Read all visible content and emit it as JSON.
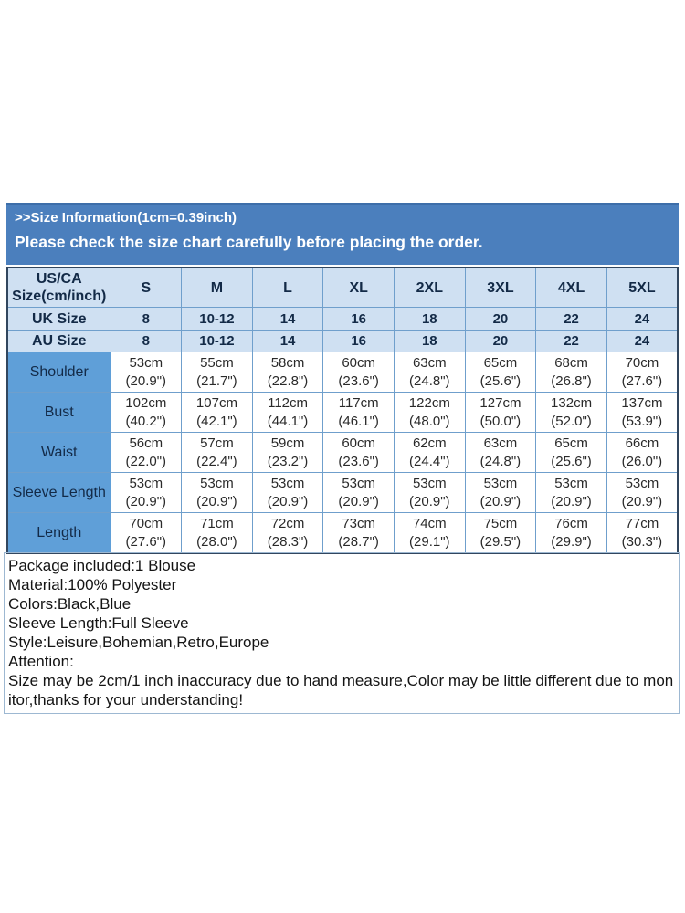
{
  "banner": {
    "title": ">>Size Information(1cm=0.39inch)",
    "subtitle": "Please check the size chart carefully before placing the order."
  },
  "size_chart": {
    "corner": {
      "line1": "US/CA",
      "line2": "Size(cm/inch)"
    },
    "size_headers": [
      "S",
      "M",
      "L",
      "XL",
      "2XL",
      "3XL",
      "4XL",
      "5XL"
    ],
    "uk_row": {
      "label": "UK Size",
      "values": [
        "8",
        "10-12",
        "14",
        "16",
        "18",
        "20",
        "22",
        "24"
      ]
    },
    "au_row": {
      "label": "AU Size",
      "values": [
        "8",
        "10-12",
        "14",
        "16",
        "18",
        "20",
        "22",
        "24"
      ]
    },
    "measurement_rows": [
      {
        "label": "Shoulder",
        "cells": [
          {
            "cm": "53cm",
            "inch": "(20.9\")"
          },
          {
            "cm": "55cm",
            "inch": "(21.7\")"
          },
          {
            "cm": "58cm",
            "inch": "(22.8\")"
          },
          {
            "cm": "60cm",
            "inch": "(23.6\")"
          },
          {
            "cm": "63cm",
            "inch": "(24.8\")"
          },
          {
            "cm": "65cm",
            "inch": "(25.6\")"
          },
          {
            "cm": "68cm",
            "inch": "(26.8\")"
          },
          {
            "cm": "70cm",
            "inch": "(27.6\")"
          }
        ]
      },
      {
        "label": "Bust",
        "cells": [
          {
            "cm": "102cm",
            "inch": "(40.2\")"
          },
          {
            "cm": "107cm",
            "inch": "(42.1\")"
          },
          {
            "cm": "112cm",
            "inch": "(44.1\")"
          },
          {
            "cm": "117cm",
            "inch": "(46.1\")"
          },
          {
            "cm": "122cm",
            "inch": "(48.0\")"
          },
          {
            "cm": "127cm",
            "inch": "(50.0\")"
          },
          {
            "cm": "132cm",
            "inch": "(52.0\")"
          },
          {
            "cm": "137cm",
            "inch": "(53.9\")"
          }
        ]
      },
      {
        "label": "Waist",
        "cells": [
          {
            "cm": "56cm",
            "inch": "(22.0\")"
          },
          {
            "cm": "57cm",
            "inch": "(22.4\")"
          },
          {
            "cm": "59cm",
            "inch": "(23.2\")"
          },
          {
            "cm": "60cm",
            "inch": "(23.6\")"
          },
          {
            "cm": "62cm",
            "inch": "(24.4\")"
          },
          {
            "cm": "63cm",
            "inch": "(24.8\")"
          },
          {
            "cm": "65cm",
            "inch": "(25.6\")"
          },
          {
            "cm": "66cm",
            "inch": "(26.0\")"
          }
        ]
      },
      {
        "label": "Sleeve Length",
        "cells": [
          {
            "cm": "53cm",
            "inch": "(20.9\")"
          },
          {
            "cm": "53cm",
            "inch": "(20.9\")"
          },
          {
            "cm": "53cm",
            "inch": "(20.9\")"
          },
          {
            "cm": "53cm",
            "inch": "(20.9\")"
          },
          {
            "cm": "53cm",
            "inch": "(20.9\")"
          },
          {
            "cm": "53cm",
            "inch": "(20.9\")"
          },
          {
            "cm": "53cm",
            "inch": "(20.9\")"
          },
          {
            "cm": "53cm",
            "inch": "(20.9\")"
          }
        ]
      },
      {
        "label": "Length",
        "cells": [
          {
            "cm": "70cm",
            "inch": "(27.6\")"
          },
          {
            "cm": "71cm",
            "inch": "(28.0\")"
          },
          {
            "cm": "72cm",
            "inch": "(28.3\")"
          },
          {
            "cm": "73cm",
            "inch": "(28.7\")"
          },
          {
            "cm": "74cm",
            "inch": "(29.1\")"
          },
          {
            "cm": "75cm",
            "inch": "(29.5\")"
          },
          {
            "cm": "76cm",
            "inch": "(29.9\")"
          },
          {
            "cm": "77cm",
            "inch": "(30.3\")"
          }
        ]
      }
    ]
  },
  "details": {
    "lines": [
      "Package included:1 Blouse",
      "Material:100% Polyester",
      "Colors:Black,Blue",
      "Sleeve Length:Full Sleeve",
      "Style:Leisure,Bohemian,Retro,Europe",
      "Attention:",
      "Size may be 2cm/1 inch inaccuracy due to hand measure,Color may be little different due to monitor,thanks for your understanding!"
    ]
  },
  "colors": {
    "banner_bg": "#4b7fbd",
    "banner_top": "#3d6ea9",
    "banner_text": "#ffffff",
    "header_bg": "#cfe0f2",
    "label_bg": "#5f9fd8",
    "grid_line": "#6f9fcc",
    "outer_border": "#31465e",
    "heading_text": "#132a47",
    "data_text": "#2a2a2a",
    "details_border": "#9db8d2"
  }
}
